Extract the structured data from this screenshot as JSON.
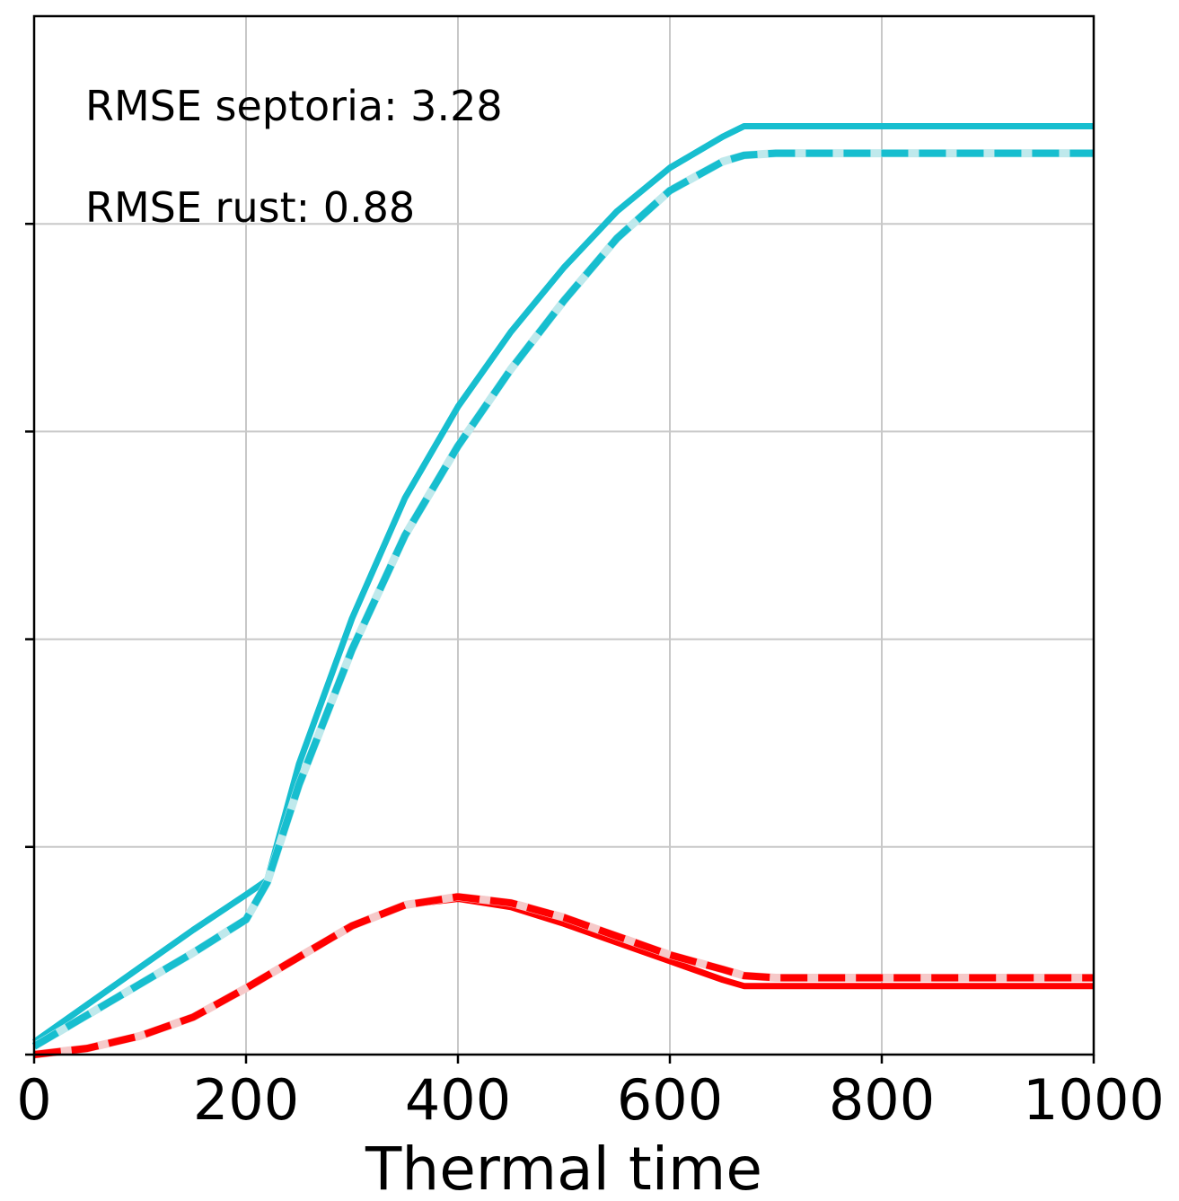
{
  "chart_data": {
    "type": "line",
    "title": "",
    "xlabel": "Thermal time",
    "ylabel": "",
    "xlim": [
      0,
      1000
    ],
    "ylim": [
      0,
      5
    ],
    "grid": true,
    "x_ticks": [
      0,
      200,
      400,
      600,
      800,
      1000
    ],
    "x_tick_labels": [
      "0",
      "200",
      "400",
      "600",
      "800",
      "1000"
    ],
    "y_ticks": [
      0,
      1,
      2,
      3,
      4
    ],
    "annotations": [
      "RMSE septoria: 3.28",
      "RMSE rust: 0.88"
    ],
    "colors": {
      "septoria": "#17BECF",
      "rust": "#FF0000",
      "overlay": "#BFE9EC",
      "rust_overlay": "#F6C9C9"
    },
    "series": [
      {
        "style": "solid",
        "color": "#17BECF",
        "x": [
          0,
          50,
          100,
          150,
          200,
          220,
          250,
          300,
          350,
          400,
          450,
          500,
          550,
          600,
          650,
          670,
          700,
          800,
          900,
          1000
        ],
        "y": [
          0.06,
          0.24,
          0.42,
          0.6,
          0.77,
          0.84,
          1.4,
          2.1,
          2.68,
          3.12,
          3.48,
          3.79,
          4.06,
          4.27,
          4.42,
          4.47,
          4.47,
          4.47,
          4.47,
          4.47
        ]
      },
      {
        "style": "dashed",
        "color": "#17BECF",
        "x": [
          0,
          50,
          100,
          150,
          200,
          220,
          250,
          300,
          350,
          400,
          450,
          500,
          550,
          600,
          650,
          670,
          700,
          800,
          900,
          1000
        ],
        "y": [
          0.04,
          0.19,
          0.34,
          0.49,
          0.65,
          0.83,
          1.3,
          1.95,
          2.5,
          2.93,
          3.3,
          3.63,
          3.93,
          4.16,
          4.3,
          4.33,
          4.34,
          4.34,
          4.34,
          4.34
        ]
      },
      {
        "style": "solid",
        "color": "#FF0000",
        "x": [
          0,
          50,
          100,
          150,
          200,
          250,
          300,
          350,
          400,
          450,
          500,
          550,
          600,
          650,
          670,
          700,
          800,
          900,
          1000
        ],
        "y": [
          0.0,
          0.03,
          0.09,
          0.18,
          0.32,
          0.47,
          0.62,
          0.72,
          0.75,
          0.71,
          0.63,
          0.54,
          0.45,
          0.36,
          0.33,
          0.33,
          0.33,
          0.33,
          0.33
        ]
      },
      {
        "style": "dashed",
        "color": "#FF0000",
        "x": [
          0,
          50,
          100,
          150,
          200,
          250,
          300,
          350,
          400,
          450,
          500,
          550,
          600,
          650,
          670,
          700,
          800,
          900,
          1000
        ],
        "y": [
          0.0,
          0.03,
          0.09,
          0.18,
          0.32,
          0.47,
          0.62,
          0.72,
          0.76,
          0.73,
          0.66,
          0.57,
          0.48,
          0.41,
          0.38,
          0.37,
          0.37,
          0.37,
          0.37
        ]
      }
    ]
  }
}
